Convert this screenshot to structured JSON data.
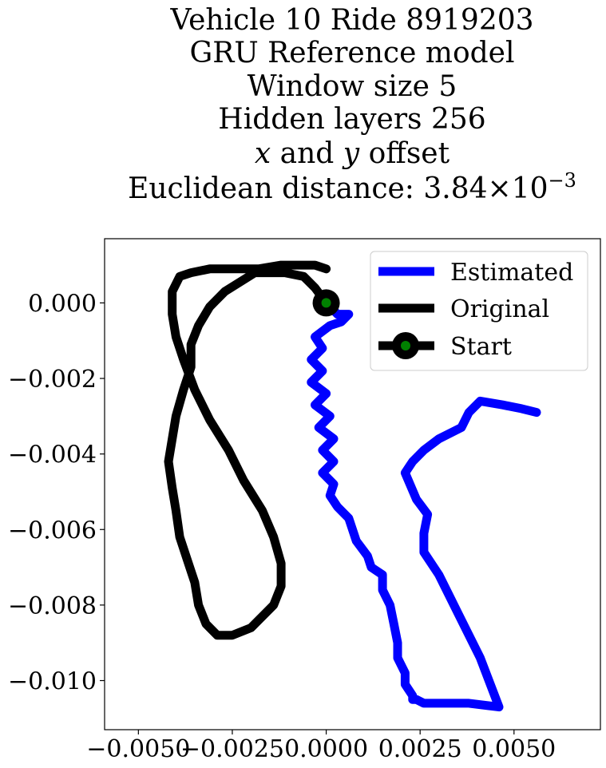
{
  "chart_data": {
    "type": "line",
    "title_lines": [
      "Vehicle 10 Ride 8919203",
      "GRU Reference model",
      "Window size 5",
      "Hidden layers 256",
      "x and y offset",
      "Euclidean distance: 3.84×10⁻³"
    ],
    "title_italic_vars": {
      "var1": "x",
      "and": " and ",
      "var2": "y",
      "rest": " offset"
    },
    "title_distance": {
      "prefix": "Euclidean distance: 3.84",
      "times": "×",
      "base": "10",
      "exponent": "−3"
    },
    "xlabel": "",
    "ylabel": "",
    "xlim": [
      -0.0059,
      0.0073
    ],
    "ylim": [
      -0.0113,
      0.0017
    ],
    "x_ticks": [
      -0.005,
      -0.0025,
      0.0,
      0.0025,
      0.005
    ],
    "x_tick_labels": [
      "−0.0050",
      "−0.0025",
      "0.0000",
      "0.0025",
      "0.0050"
    ],
    "y_ticks": [
      0.0,
      -0.002,
      -0.004,
      -0.006,
      -0.008,
      -0.01
    ],
    "y_tick_labels": [
      "0.000",
      "−0.002",
      "−0.004",
      "−0.006",
      "−0.008",
      "−0.010"
    ],
    "legend_position": "upper right",
    "colors": {
      "estimated": "#0000ff",
      "original": "#000000",
      "start_outer": "#000000",
      "start_inner": "#008000"
    },
    "series": [
      {
        "name": "Estimated",
        "x": [
          0.0,
          0.0003,
          0.0006,
          0.0004,
          0.0001,
          -0.0003,
          -0.0001,
          -0.0004,
          -0.0001,
          -0.0004,
          0.0,
          -0.0003,
          0.0001,
          -0.0002,
          0.0002,
          -0.0001,
          0.0002,
          -0.0001,
          0.0002,
          0.0001,
          0.0003,
          0.0006,
          0.0008,
          0.0011,
          0.0012,
          0.0015,
          0.0015,
          0.0017,
          0.0018,
          0.0019,
          0.0019,
          0.0021,
          0.0021,
          0.0023,
          0.0023,
          0.0024,
          0.0026,
          0.0029,
          0.0033,
          0.0038,
          0.0046,
          0.0041,
          0.0035,
          0.003,
          0.0026,
          0.0026,
          0.0027,
          0.0024,
          0.0021,
          0.0023,
          0.0026,
          0.003,
          0.0036,
          0.0038,
          0.0041,
          0.0047,
          0.0052,
          0.0056
        ],
        "y": [
          0.0,
          -0.0003,
          -0.0003,
          -0.0005,
          -0.0006,
          -0.0009,
          -0.0012,
          -0.0015,
          -0.0018,
          -0.0021,
          -0.0024,
          -0.0027,
          -0.003,
          -0.0033,
          -0.0036,
          -0.0039,
          -0.0042,
          -0.0045,
          -0.0048,
          -0.0051,
          -0.0054,
          -0.0057,
          -0.0063,
          -0.0067,
          -0.007,
          -0.0072,
          -0.0076,
          -0.008,
          -0.0085,
          -0.009,
          -0.0094,
          -0.0098,
          -0.0101,
          -0.0104,
          -0.0105,
          -0.0105,
          -0.0106,
          -0.0106,
          -0.0106,
          -0.0106,
          -0.0107,
          -0.0094,
          -0.0082,
          -0.0072,
          -0.0066,
          -0.0061,
          -0.0056,
          -0.0052,
          -0.0045,
          -0.0042,
          -0.0039,
          -0.0036,
          -0.0033,
          -0.0029,
          -0.0026,
          -0.0027,
          -0.0028,
          -0.0029
        ]
      },
      {
        "name": "Original",
        "x": [
          0.0,
          -0.0003,
          -0.0006,
          -0.0011,
          -0.0019,
          -0.0027,
          -0.0031,
          -0.0034,
          -0.0036,
          -0.0036,
          -0.0038,
          -0.004,
          -0.0041,
          -0.0042,
          -0.0041,
          -0.004,
          -0.0039,
          -0.0037,
          -0.0035,
          -0.0034,
          -0.0032,
          -0.0029,
          -0.0025,
          -0.002,
          -0.0014,
          -0.0012,
          -0.0012,
          -0.0014,
          -0.0017,
          -0.0022,
          -0.0026,
          -0.0031,
          -0.0035,
          -0.0038,
          -0.004,
          -0.0041,
          -0.0041,
          -0.0039,
          -0.0036,
          -0.0031,
          -0.0025,
          -0.0018,
          -0.0012,
          -0.0007,
          -0.0003,
          0.0
        ],
        "y": [
          0.0,
          0.0004,
          0.0007,
          0.0008,
          0.0008,
          0.0003,
          -0.0001,
          -0.0006,
          -0.0011,
          -0.0017,
          -0.0023,
          -0.003,
          -0.0036,
          -0.0042,
          -0.0049,
          -0.0055,
          -0.0062,
          -0.0068,
          -0.0074,
          -0.008,
          -0.0085,
          -0.0088,
          -0.0088,
          -0.0086,
          -0.008,
          -0.0075,
          -0.0069,
          -0.0062,
          -0.0055,
          -0.0047,
          -0.0039,
          -0.0031,
          -0.0023,
          -0.0015,
          -0.0009,
          -0.0003,
          0.0003,
          0.0007,
          0.0008,
          0.0009,
          0.0009,
          0.0009,
          0.001,
          0.001,
          0.001,
          0.0009
        ]
      },
      {
        "name": "Start",
        "x": [
          0.0
        ],
        "y": [
          0.0
        ]
      }
    ]
  }
}
